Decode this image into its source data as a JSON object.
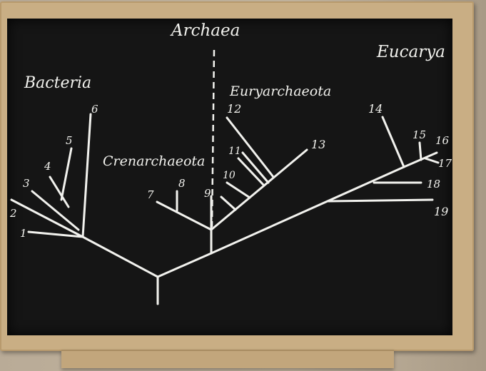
{
  "domains": {
    "archaea": "Archaea",
    "bacteria": "Bacteria",
    "eucarya": "Eucarya"
  },
  "groups": {
    "crenarchaeota": "Crenarchaeota",
    "euryarchaeota": "Euryarchaeota"
  },
  "leaves": [
    "1",
    "2",
    "3",
    "4",
    "5",
    "6",
    "7",
    "8",
    "9",
    "10",
    "11",
    "12",
    "13",
    "14",
    "15",
    "16",
    "17",
    "18",
    "19"
  ]
}
